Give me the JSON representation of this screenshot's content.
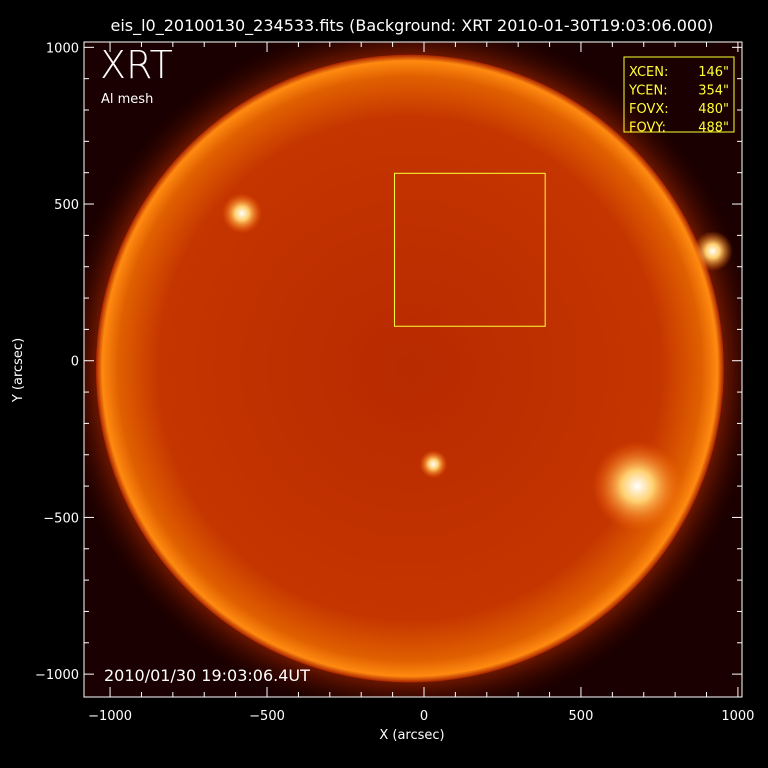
{
  "chart_data": {
    "type": "image",
    "title": "eis_l0_20100130_234533.fits  (Background: XRT 2010-01-30T19:03:06.000)",
    "xlabel": "X (arcsec)",
    "ylabel": "Y (arcsec)",
    "xlim": [
      -1083,
      1013
    ],
    "ylim": [
      -1073,
      1017
    ],
    "xticks": [
      -1000,
      -500,
      0,
      500,
      1000
    ],
    "xtick_labels": [
      "−1000",
      "−500",
      "0",
      "500",
      "1000"
    ],
    "yticks": [
      -1000,
      -500,
      0,
      500,
      1000
    ],
    "ytick_labels": [
      "−1000",
      "−500",
      "0",
      "500",
      "1000"
    ],
    "colormap": "red-orange-white (XRT)",
    "instrument_label": "XRT",
    "filter_label": "Al mesh",
    "timestamp_label": "2010/01/30 19:03:06.4UT",
    "fov_box": {
      "xcen": 146,
      "ycen": 354,
      "fovx": 480,
      "fovy": 488,
      "color": "#ffff33"
    },
    "legend": [
      {
        "key": "XCEN:",
        "value": "146\""
      },
      {
        "key": "YCEN:",
        "value": "354\""
      },
      {
        "key": "FOVX:",
        "value": "480\""
      },
      {
        "key": "FOVY:",
        "value": "488\""
      }
    ],
    "bright_regions": [
      {
        "x": -580,
        "y": 470
      },
      {
        "x": 920,
        "y": 350
      },
      {
        "x": 680,
        "y": -400
      },
      {
        "x": 30,
        "y": -330
      }
    ]
  }
}
